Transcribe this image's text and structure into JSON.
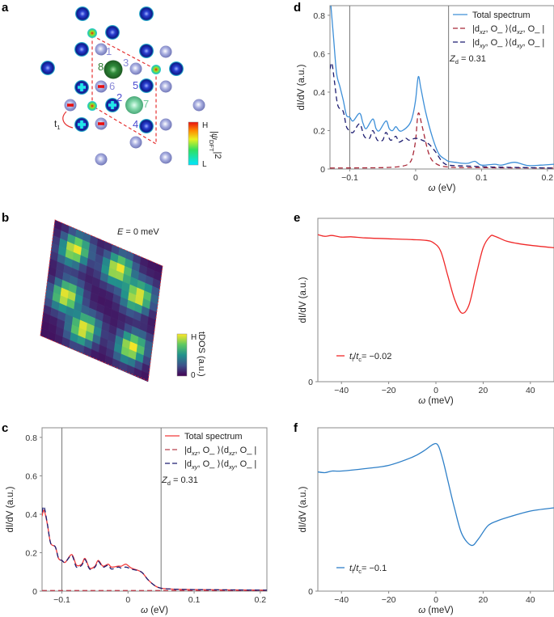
{
  "panel_labels": {
    "a": "a",
    "b": "b",
    "c": "c",
    "d": "d",
    "e": "e",
    "f": "f"
  },
  "panel_a": {
    "site_labels": [
      "1",
      "2",
      "3",
      "4",
      "5",
      "6",
      "7",
      "8"
    ],
    "hopping_label": {
      "main": "t",
      "sub": "1"
    },
    "colorbar": {
      "high": "H",
      "low": "L",
      "label_main": "|ψ",
      "label_sub": "DFT",
      "label_sup": "|2"
    },
    "colors": {
      "bond_outline": "#e53030",
      "site_8": "#2e7d32",
      "site_7": "#7fd6a8",
      "site_labels": "#6a6ad8"
    }
  },
  "panel_b": {
    "type": "heatmap",
    "title": "E = 0 meV",
    "title_var": "E",
    "title_rest": " = 0 meV",
    "colorbar": {
      "high": "H",
      "low": "0",
      "label": "tDOS (a.u.)"
    },
    "colormap": "viridis"
  },
  "chart_data": [
    {
      "id": "c",
      "type": "line",
      "xlabel_var": "ω",
      "xlabel_unit": " (eV)",
      "ylabel": "dI/dV (a.u.)",
      "xlim": [
        -0.13,
        0.21
      ],
      "ylim": [
        0,
        0.85
      ],
      "xticks": [
        -0.1,
        0,
        0.1,
        0.2
      ],
      "xtick_labels": [
        "−0.1",
        "0",
        "0.1",
        "0.2"
      ],
      "yticks": [
        0,
        0.2,
        0.4,
        0.6,
        0.8
      ],
      "ytick_labels": [
        "0",
        "0.2",
        "0.4",
        "0.6",
        "0.8"
      ],
      "vlines": [
        -0.1,
        0.05
      ],
      "annotation": {
        "var": "Z",
        "sub": "d",
        "rest": " = 0.31"
      },
      "legend_position": "top-right",
      "series": [
        {
          "name": "Total spectrum",
          "color": "#f23a3a",
          "dash": false,
          "x": [
            -0.13,
            -0.127,
            -0.122,
            -0.117,
            -0.11,
            -0.105,
            -0.1,
            -0.095,
            -0.085,
            -0.078,
            -0.07,
            -0.065,
            -0.058,
            -0.05,
            -0.045,
            -0.038,
            -0.03,
            -0.025,
            -0.015,
            -0.01,
            -0.003,
            0.005,
            0.02,
            0.03,
            0.04,
            0.05,
            0.07,
            0.1,
            0.21
          ],
          "y": [
            0.39,
            0.42,
            0.35,
            0.25,
            0.23,
            0.17,
            0.16,
            0.15,
            0.19,
            0.135,
            0.14,
            0.17,
            0.12,
            0.13,
            0.16,
            0.13,
            0.14,
            0.125,
            0.13,
            0.13,
            0.14,
            0.12,
            0.1,
            0.06,
            0.03,
            0.015,
            0.01,
            0.008,
            0.005
          ]
        },
        {
          "name_parts": [
            "|d",
            "xz",
            ", O_ ⟩⟨d",
            "xz",
            ", O_ |"
          ],
          "color": "#b8404e",
          "dash": true,
          "x": [
            -0.13,
            0.21
          ],
          "y": [
            0.003,
            0.003
          ]
        },
        {
          "name_parts": [
            "|d",
            "xy",
            ", O_ ⟩⟨d",
            "xy",
            ", O_ |"
          ],
          "color": "#1e1e72",
          "dash": true,
          "x": [
            -0.13,
            -0.127,
            -0.122,
            -0.117,
            -0.11,
            -0.105,
            -0.1,
            -0.095,
            -0.085,
            -0.078,
            -0.07,
            -0.065,
            -0.058,
            -0.05,
            -0.045,
            -0.038,
            -0.03,
            -0.025,
            -0.015,
            -0.01,
            -0.003,
            0.005,
            0.02,
            0.03,
            0.04,
            0.05,
            0.07,
            0.1,
            0.21
          ],
          "y": [
            0.41,
            0.44,
            0.35,
            0.25,
            0.23,
            0.17,
            0.16,
            0.15,
            0.185,
            0.125,
            0.135,
            0.165,
            0.115,
            0.125,
            0.155,
            0.125,
            0.135,
            0.115,
            0.125,
            0.12,
            0.125,
            0.115,
            0.1,
            0.06,
            0.03,
            0.015,
            0.01,
            0.008,
            0.005
          ]
        }
      ]
    },
    {
      "id": "d",
      "type": "line",
      "xlabel_var": "ω",
      "xlabel_unit": " (eV)",
      "ylabel": "dI/dV (a.u.)",
      "xlim": [
        -0.13,
        0.21
      ],
      "ylim": [
        0,
        0.85
      ],
      "xticks": [
        -0.1,
        0,
        0.1,
        0.2
      ],
      "xtick_labels": [
        "−0.1",
        "0",
        "0.1",
        "0.2"
      ],
      "yticks": [
        0,
        0.2,
        0.4,
        0.6,
        0.8
      ],
      "ytick_labels": [
        "0",
        "0.2",
        "0.4",
        "0.6",
        "0.8"
      ],
      "vlines": [
        -0.1,
        0.05
      ],
      "annotation": {
        "var": "Z",
        "sub": "d",
        "rest": " = 0.31"
      },
      "legend_position": "top-right",
      "series": [
        {
          "name": "Total spectrum",
          "color": "#3d8fd8",
          "dash": false,
          "x": [
            -0.131,
            -0.125,
            -0.12,
            -0.115,
            -0.11,
            -0.105,
            -0.1,
            -0.095,
            -0.085,
            -0.08,
            -0.075,
            -0.065,
            -0.06,
            -0.055,
            -0.045,
            -0.04,
            -0.035,
            -0.03,
            -0.025,
            -0.02,
            -0.01,
            -0.005,
            0.0,
            0.004,
            0.008,
            0.015,
            0.025,
            0.035,
            0.045,
            0.05,
            0.06,
            0.07,
            0.08,
            0.09,
            0.1,
            0.12,
            0.13,
            0.15,
            0.17,
            0.19,
            0.21
          ],
          "y": [
            0.95,
            0.7,
            0.5,
            0.43,
            0.36,
            0.28,
            0.27,
            0.25,
            0.29,
            0.24,
            0.21,
            0.26,
            0.21,
            0.2,
            0.25,
            0.21,
            0.2,
            0.22,
            0.2,
            0.2,
            0.23,
            0.27,
            0.36,
            0.48,
            0.42,
            0.3,
            0.17,
            0.08,
            0.05,
            0.04,
            0.035,
            0.03,
            0.03,
            0.04,
            0.02,
            0.025,
            0.02,
            0.035,
            0.018,
            0.02,
            0.025
          ]
        },
        {
          "name_parts": [
            "|d",
            "xz",
            ", O_ ⟩⟨d",
            "xz",
            ", O_ |"
          ],
          "color": "#a82838",
          "dash": true,
          "x": [
            -0.13,
            -0.05,
            -0.02,
            -0.01,
            -0.005,
            0.0,
            0.004,
            0.01,
            0.02,
            0.03,
            0.05,
            0.1,
            0.21
          ],
          "y": [
            0.005,
            0.007,
            0.015,
            0.03,
            0.06,
            0.15,
            0.29,
            0.22,
            0.08,
            0.03,
            0.01,
            0.007,
            0.005
          ]
        },
        {
          "name_parts": [
            "|d",
            "xy",
            ", O_ ⟩⟨d",
            "xy",
            ", O_ |"
          ],
          "color": "#1c1c70",
          "dash": true,
          "x": [
            -0.13,
            -0.127,
            -0.123,
            -0.118,
            -0.11,
            -0.105,
            -0.1,
            -0.095,
            -0.085,
            -0.078,
            -0.07,
            -0.065,
            -0.058,
            -0.05,
            -0.045,
            -0.038,
            -0.03,
            -0.025,
            -0.015,
            -0.01,
            0.0,
            0.01,
            0.02,
            0.03,
            0.04,
            0.05,
            0.08,
            0.12,
            0.21
          ],
          "y": [
            0.52,
            0.55,
            0.45,
            0.33,
            0.3,
            0.22,
            0.2,
            0.19,
            0.235,
            0.17,
            0.16,
            0.2,
            0.15,
            0.15,
            0.19,
            0.15,
            0.17,
            0.14,
            0.16,
            0.15,
            0.16,
            0.15,
            0.13,
            0.09,
            0.04,
            0.02,
            0.015,
            0.01,
            0.005
          ]
        }
      ]
    },
    {
      "id": "e",
      "type": "line",
      "xlabel_var": "ω",
      "xlabel_unit": " (meV)",
      "ylabel": "dI/dV (a.u.)",
      "xlim": [
        -50,
        50
      ],
      "ylim": [
        0,
        1
      ],
      "xticks": [
        -40,
        -20,
        0,
        20,
        40
      ],
      "xtick_labels": [
        "−40",
        "−20",
        "0",
        "20",
        "40"
      ],
      "yticks": [
        0
      ],
      "ytick_labels": [
        "0"
      ],
      "vlines": [],
      "legend_position": "bottom-left",
      "series": [
        {
          "legend": {
            "a": "t",
            "a_sub": "f",
            "b": "t",
            "b_sub": "c",
            "rest": "= −0.02"
          },
          "color": "#f02828",
          "dash": false,
          "x": [
            -50,
            -47,
            -44,
            -40,
            -36,
            -30,
            -20,
            -10,
            -4,
            -1,
            2,
            5,
            8,
            11,
            14,
            17,
            20,
            23,
            25,
            30,
            35,
            40,
            50
          ],
          "y": [
            0.9,
            0.89,
            0.895,
            0.885,
            0.887,
            0.88,
            0.875,
            0.87,
            0.865,
            0.85,
            0.8,
            0.65,
            0.5,
            0.42,
            0.47,
            0.65,
            0.82,
            0.89,
            0.89,
            0.86,
            0.845,
            0.835,
            0.82
          ]
        }
      ]
    },
    {
      "id": "f",
      "type": "line",
      "xlabel_var": "ω",
      "xlabel_unit": " (meV)",
      "ylabel": "dI/dV (a.u.)",
      "xlim": [
        -50,
        50
      ],
      "ylim": [
        0,
        1
      ],
      "xticks": [
        -40,
        -20,
        0,
        20,
        40
      ],
      "xtick_labels": [
        "−40",
        "−20",
        "0",
        "20",
        "40"
      ],
      "yticks": [
        0
      ],
      "ytick_labels": [
        "0"
      ],
      "vlines": [],
      "legend_position": "bottom-left",
      "series": [
        {
          "legend": {
            "a": "t",
            "a_sub": "f",
            "b": "t",
            "b_sub": "c",
            "rest": "= −0.1"
          },
          "color": "#2f80c8",
          "dash": false,
          "x": [
            -50,
            -47,
            -44,
            -40,
            -30,
            -20,
            -10,
            -5,
            -1,
            1,
            3,
            5,
            8,
            11,
            15,
            18,
            22,
            26,
            30,
            40,
            50
          ],
          "y": [
            0.73,
            0.725,
            0.735,
            0.735,
            0.75,
            0.77,
            0.82,
            0.86,
            0.9,
            0.89,
            0.8,
            0.68,
            0.5,
            0.35,
            0.28,
            0.32,
            0.4,
            0.43,
            0.45,
            0.49,
            0.51
          ]
        }
      ]
    }
  ]
}
